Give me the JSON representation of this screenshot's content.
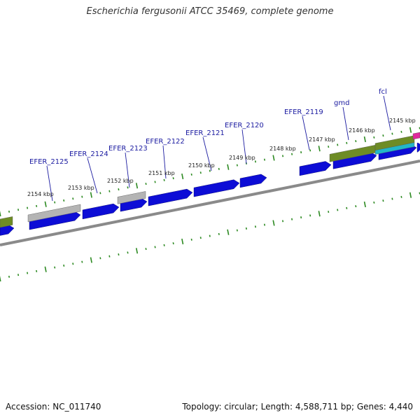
{
  "title": "Escherichia fergusonii ATCC 35469, complete genome",
  "footer": {
    "accession": "Accession: NC_011740",
    "summary": "Topology: circular; Length: 4,588,711 bp; Genes: 4,440"
  },
  "colors": {
    "backbone": "#8a8a8a",
    "cds": "#0d0dd6",
    "gene_label": "#1a1aa0",
    "tick": "#2d8a22",
    "pseudo": "#b4b4b4",
    "olive": "#6e8c25",
    "cyan": "#22b7c8",
    "magenta": "#e0299d"
  },
  "scale_labels": [
    "2154 kbp",
    "2153 kbp",
    "2152 kbp",
    "2151 kbp",
    "2150 kbp",
    "2149 kbp",
    "2148 kbp",
    "2147 kbp",
    "2146 kbp",
    "2145 kbp"
  ],
  "gene_labels": [
    "EFER_2125",
    "EFER_2124",
    "EFER_2123",
    "EFER_2122",
    "EFER_2121",
    "EFER_2120",
    "EFER_2119",
    "gmd",
    "fcl"
  ]
}
